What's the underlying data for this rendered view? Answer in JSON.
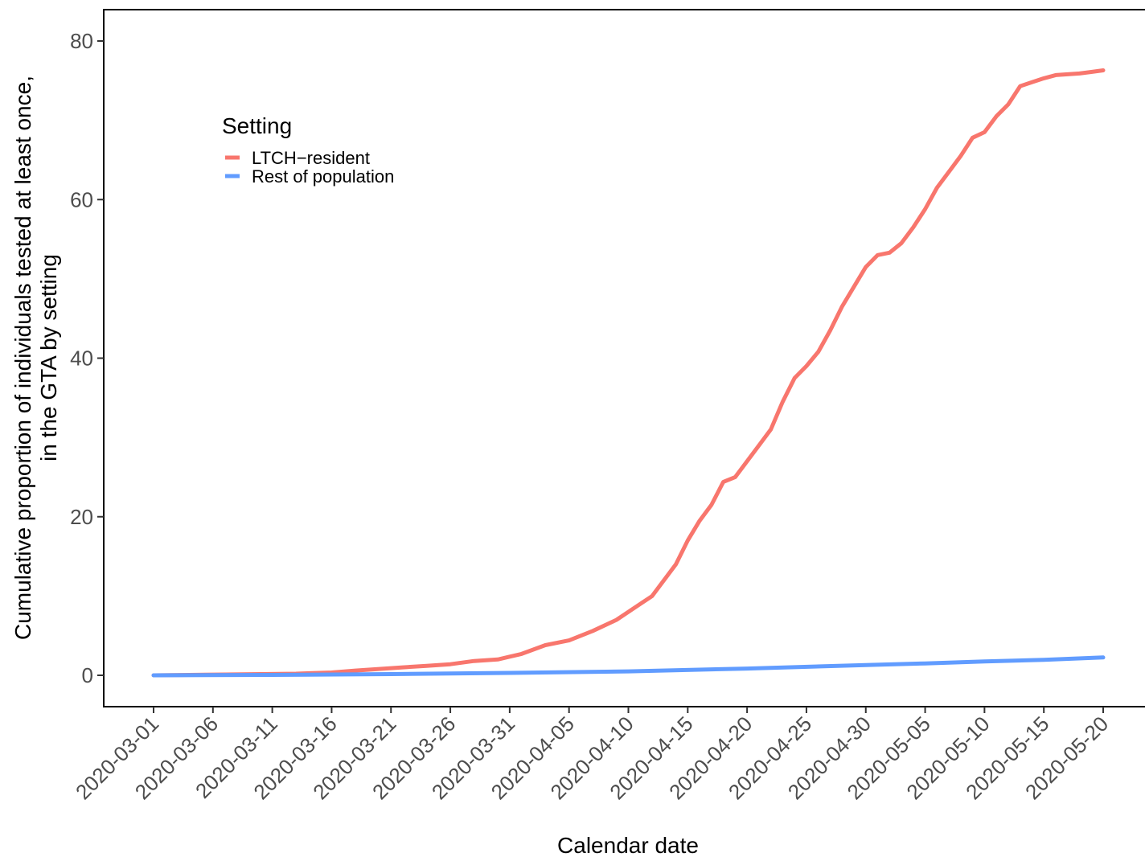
{
  "chart_data": {
    "type": "line",
    "xlabel": "Calendar date",
    "ylabel_line1": "Cumulative proportion of individuals tested at least once,",
    "ylabel_line2": "in the GTA by setting",
    "xlim": [
      "2020-03-01",
      "2020-05-20"
    ],
    "ylim": [
      -4,
      84
    ],
    "x_ticks": [
      "2020-03-01",
      "2020-03-06",
      "2020-03-11",
      "2020-03-16",
      "2020-03-21",
      "2020-03-26",
      "2020-03-31",
      "2020-04-05",
      "2020-04-10",
      "2020-04-15",
      "2020-04-20",
      "2020-04-25",
      "2020-04-30",
      "2020-05-05",
      "2020-05-10",
      "2020-05-15",
      "2020-05-20"
    ],
    "y_ticks": [
      0,
      20,
      40,
      60,
      80
    ],
    "grid": false,
    "legend": {
      "title": "Setting",
      "placement": "top-left inside"
    },
    "series": [
      {
        "name": "LTCH−resident",
        "color": "#F8766D",
        "x": [
          "2020-03-01",
          "2020-03-04",
          "2020-03-07",
          "2020-03-10",
          "2020-03-13",
          "2020-03-16",
          "2020-03-18",
          "2020-03-20",
          "2020-03-22",
          "2020-03-24",
          "2020-03-26",
          "2020-03-28",
          "2020-03-30",
          "2020-04-01",
          "2020-04-03",
          "2020-04-05",
          "2020-04-07",
          "2020-04-09",
          "2020-04-11",
          "2020-04-12",
          "2020-04-13",
          "2020-04-14",
          "2020-04-15",
          "2020-04-16",
          "2020-04-17",
          "2020-04-18",
          "2020-04-19",
          "2020-04-20",
          "2020-04-21",
          "2020-04-22",
          "2020-04-23",
          "2020-04-24",
          "2020-04-25",
          "2020-04-26",
          "2020-04-27",
          "2020-04-28",
          "2020-04-29",
          "2020-04-30",
          "2020-05-01",
          "2020-05-02",
          "2020-05-03",
          "2020-05-04",
          "2020-05-05",
          "2020-05-06",
          "2020-05-07",
          "2020-05-08",
          "2020-05-09",
          "2020-05-10",
          "2020-05-11",
          "2020-05-12",
          "2020-05-13",
          "2020-05-14",
          "2020-05-15",
          "2020-05-16",
          "2020-05-18",
          "2020-05-19",
          "2020-05-20"
        ],
        "y": [
          0.0,
          0.05,
          0.1,
          0.15,
          0.2,
          0.35,
          0.6,
          0.8,
          1.0,
          1.2,
          1.4,
          1.8,
          2.0,
          2.7,
          3.8,
          4.4,
          5.6,
          7.0,
          9.0,
          10.0,
          12.0,
          14.0,
          17.0,
          19.5,
          21.5,
          24.4,
          25.0,
          27.0,
          29.0,
          31.0,
          34.5,
          37.5,
          39.0,
          40.8,
          43.5,
          46.5,
          49.0,
          51.5,
          53.0,
          53.3,
          54.5,
          56.5,
          58.8,
          61.5,
          63.5,
          65.5,
          67.8,
          68.5,
          70.5,
          72.0,
          74.3,
          74.8,
          75.3,
          75.7,
          75.9,
          76.1,
          76.3
        ]
      },
      {
        "name": "Rest of population",
        "color": "#619CFF",
        "x": [
          "2020-03-01",
          "2020-03-11",
          "2020-03-21",
          "2020-03-31",
          "2020-04-10",
          "2020-04-20",
          "2020-04-30",
          "2020-05-05",
          "2020-05-10",
          "2020-05-15",
          "2020-05-20"
        ],
        "y": [
          0.0,
          0.05,
          0.15,
          0.3,
          0.5,
          0.85,
          1.3,
          1.5,
          1.75,
          1.95,
          2.25
        ]
      }
    ]
  }
}
